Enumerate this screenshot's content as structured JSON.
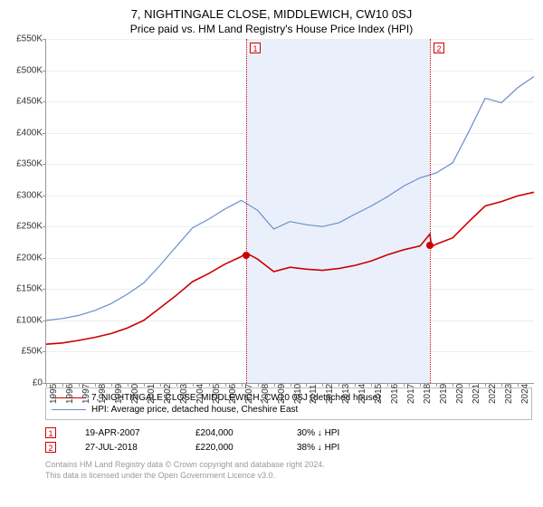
{
  "title": "7, NIGHTINGALE CLOSE, MIDDLEWICH, CW10 0SJ",
  "subtitle": "Price paid vs. HM Land Registry's House Price Index (HPI)",
  "chart": {
    "type": "line",
    "background_color": "#ffffff",
    "grid_color": "#eeeeee",
    "axis_color": "#999999",
    "label_fontsize": 10,
    "ylim": [
      0,
      550000
    ],
    "ytick_step": 50000,
    "yticks": [
      "£0",
      "£50K",
      "£100K",
      "£150K",
      "£200K",
      "£250K",
      "£300K",
      "£350K",
      "£400K",
      "£450K",
      "£500K",
      "£550K"
    ],
    "xlim": [
      1995,
      2025
    ],
    "xticks": [
      1995,
      1996,
      1997,
      1998,
      1999,
      2000,
      2001,
      2002,
      2003,
      2004,
      2005,
      2006,
      2007,
      2008,
      2009,
      2010,
      2011,
      2012,
      2013,
      2014,
      2015,
      2016,
      2017,
      2018,
      2019,
      2020,
      2021,
      2022,
      2023,
      2024
    ],
    "shade": {
      "from": 2007.3,
      "to": 2018.6,
      "color": "#eaf0fb"
    },
    "series": [
      {
        "name": "7, NIGHTINGALE CLOSE, MIDDLEWICH, CW10 0SJ (detached house)",
        "color": "#cc0000",
        "line_width": 1.6,
        "x": [
          1995,
          1996,
          1997,
          1998,
          1999,
          2000,
          2001,
          2002,
          2003,
          2004,
          2005,
          2006,
          2007,
          2007.3,
          2008,
          2009,
          2010,
          2011,
          2012,
          2013,
          2014,
          2015,
          2016,
          2017,
          2018,
          2018.6,
          2018.7,
          2019,
          2020,
          2021,
          2022,
          2023,
          2024,
          2025
        ],
        "y": [
          62000,
          64000,
          68000,
          73000,
          79000,
          88000,
          100000,
          120000,
          140000,
          162000,
          175000,
          190000,
          202000,
          208000,
          198000,
          178000,
          185000,
          182000,
          180000,
          183000,
          188000,
          195000,
          205000,
          213000,
          219000,
          238000,
          218000,
          222000,
          232000,
          258000,
          283000,
          290000,
          299000,
          305000
        ]
      },
      {
        "name": "HPI: Average price, detached house, Cheshire East",
        "color": "#6b8cce",
        "line_width": 1.2,
        "x": [
          1995,
          1996,
          1997,
          1998,
          1999,
          2000,
          2001,
          2002,
          2003,
          2004,
          2005,
          2006,
          2007,
          2008,
          2009,
          2010,
          2011,
          2012,
          2013,
          2014,
          2015,
          2016,
          2017,
          2018,
          2019,
          2020,
          2021,
          2022,
          2023,
          2024,
          2025
        ],
        "y": [
          100000,
          103000,
          108000,
          116000,
          127000,
          142000,
          160000,
          188000,
          218000,
          248000,
          262000,
          278000,
          292000,
          276000,
          246000,
          258000,
          253000,
          250000,
          256000,
          270000,
          283000,
          298000,
          315000,
          328000,
          336000,
          352000,
          402000,
          455000,
          448000,
          472000,
          490000
        ]
      }
    ],
    "events": [
      {
        "id": "1",
        "x": 2007.3,
        "dot_y": 204000
      },
      {
        "id": "2",
        "x": 2018.6,
        "dot_y": 220000
      }
    ],
    "event_line_color": "#cc0000",
    "event_box_border": "#cc0000",
    "event_box_bg": "#ffffff",
    "event_box_text": "#cc0000"
  },
  "legend": {
    "items": [
      {
        "color": "#cc0000",
        "width": 1.6,
        "label": "7, NIGHTINGALE CLOSE, MIDDLEWICH, CW10 0SJ (detached house)"
      },
      {
        "color": "#6b8cce",
        "width": 1.2,
        "label": "HPI: Average price, detached house, Cheshire East"
      }
    ]
  },
  "details": {
    "rows": [
      {
        "id": "1",
        "date": "19-APR-2007",
        "price": "£204,000",
        "delta": "30% ↓ HPI"
      },
      {
        "id": "2",
        "date": "27-JUL-2018",
        "price": "£220,000",
        "delta": "38% ↓ HPI"
      }
    ]
  },
  "footer": {
    "line1": "Contains HM Land Registry data © Crown copyright and database right 2024.",
    "line2": "This data is licensed under the Open Government Licence v3.0."
  }
}
